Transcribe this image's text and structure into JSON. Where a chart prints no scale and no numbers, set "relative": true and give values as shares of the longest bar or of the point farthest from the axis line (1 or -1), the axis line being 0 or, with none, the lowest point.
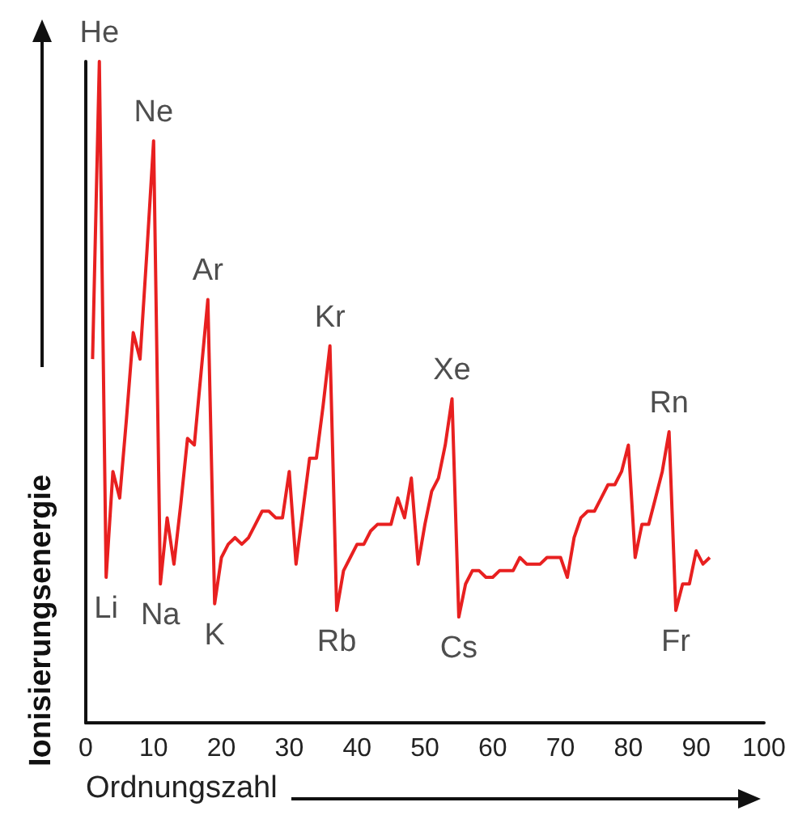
{
  "chart_data": {
    "type": "line",
    "relative": true,
    "xlabel": "Ordnungszahl",
    "ylabel": "Ionisierungsenergie",
    "x": [
      1,
      2,
      3,
      4,
      5,
      6,
      7,
      8,
      9,
      10,
      11,
      12,
      13,
      14,
      15,
      16,
      17,
      18,
      19,
      20,
      21,
      22,
      23,
      24,
      25,
      26,
      27,
      28,
      29,
      30,
      31,
      32,
      33,
      34,
      35,
      36,
      37,
      38,
      39,
      40,
      41,
      42,
      43,
      44,
      45,
      46,
      47,
      48,
      49,
      50,
      51,
      52,
      53,
      54,
      55,
      56,
      57,
      58,
      59,
      60,
      61,
      62,
      63,
      64,
      65,
      66,
      67,
      68,
      69,
      70,
      71,
      72,
      73,
      74,
      75,
      76,
      77,
      78,
      79,
      80,
      81,
      82,
      83,
      84,
      85,
      86,
      87,
      88,
      89,
      90,
      91,
      92
    ],
    "series": [
      {
        "color": "#e82020",
        "values": [
          0.55,
          1.0,
          0.22,
          0.38,
          0.34,
          0.46,
          0.59,
          0.55,
          0.71,
          0.88,
          0.21,
          0.31,
          0.24,
          0.33,
          0.43,
          0.42,
          0.53,
          0.64,
          0.18,
          0.25,
          0.27,
          0.28,
          0.27,
          0.28,
          0.3,
          0.32,
          0.32,
          0.31,
          0.31,
          0.38,
          0.24,
          0.32,
          0.4,
          0.4,
          0.48,
          0.57,
          0.17,
          0.23,
          0.25,
          0.27,
          0.27,
          0.29,
          0.3,
          0.3,
          0.3,
          0.34,
          0.31,
          0.37,
          0.24,
          0.3,
          0.35,
          0.37,
          0.42,
          0.49,
          0.16,
          0.21,
          0.23,
          0.23,
          0.22,
          0.22,
          0.23,
          0.23,
          0.23,
          0.25,
          0.24,
          0.24,
          0.24,
          0.25,
          0.25,
          0.25,
          0.22,
          0.28,
          0.31,
          0.32,
          0.32,
          0.34,
          0.36,
          0.36,
          0.38,
          0.42,
          0.25,
          0.3,
          0.3,
          0.34,
          0.38,
          0.44,
          0.17,
          0.21,
          0.21,
          0.26,
          0.24,
          0.25
        ]
      }
    ],
    "xlim": [
      0,
      100
    ],
    "xticks": [
      0,
      10,
      20,
      30,
      40,
      50,
      60,
      70,
      80,
      90,
      100
    ],
    "grid": false,
    "marker": "none",
    "line_style": "solid",
    "annotations": [
      {
        "text": "He",
        "x": 2,
        "y": 1.0
      },
      {
        "text": "Li",
        "x": 3,
        "y": 0.22
      },
      {
        "text": "Ne",
        "x": 10,
        "y": 0.88
      },
      {
        "text": "Na",
        "x": 11,
        "y": 0.21
      },
      {
        "text": "Ar",
        "x": 18,
        "y": 0.64
      },
      {
        "text": "K",
        "x": 19,
        "y": 0.18
      },
      {
        "text": "Kr",
        "x": 36,
        "y": 0.57
      },
      {
        "text": "Rb",
        "x": 37,
        "y": 0.17
      },
      {
        "text": "Xe",
        "x": 54,
        "y": 0.49
      },
      {
        "text": "Cs",
        "x": 55,
        "y": 0.16
      },
      {
        "text": "Rn",
        "x": 86,
        "y": 0.44
      },
      {
        "text": "Fr",
        "x": 87,
        "y": 0.17
      }
    ]
  }
}
